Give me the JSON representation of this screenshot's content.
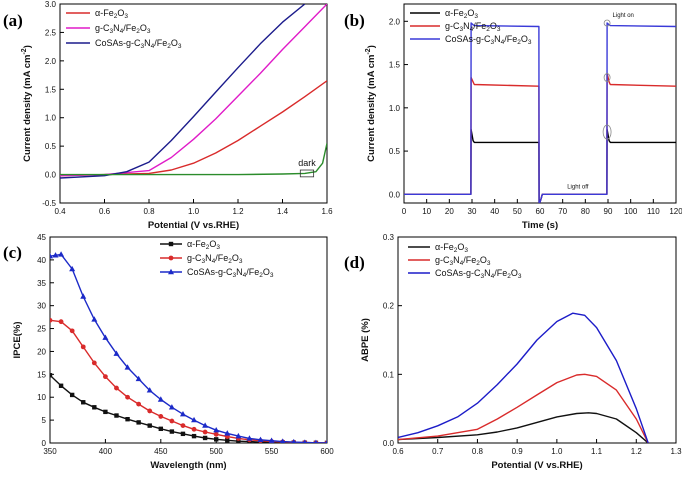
{
  "chart_data": [
    {
      "id": "a",
      "panel_label": "(a)",
      "type": "line",
      "xlabel": "Potential (V vs.RHE)",
      "ylabel": "Current density (mA cm",
      "ylabel_sup": "-2",
      "ylabel_end": ")",
      "xlim": [
        0.4,
        1.6
      ],
      "ylim": [
        -0.5,
        3.0
      ],
      "xticks": [
        0.4,
        0.6,
        0.8,
        1.0,
        1.2,
        1.4,
        1.6
      ],
      "xticklabels": [
        "0.4",
        "0.6",
        "0.8",
        "1.0",
        "1.2",
        "1.4",
        "1.6"
      ],
      "yticks": [
        -0.5,
        0.0,
        0.5,
        1.0,
        1.5,
        2.0,
        2.5,
        3.0
      ],
      "yticklabels": [
        "-0.5",
        "0.0",
        "0.5",
        "1.0",
        "1.5",
        "2.0",
        "2.5",
        "3.0"
      ],
      "legend": [
        {
          "text": "α-Fe",
          "sub": "2",
          "text2": "O",
          "sub2": "3",
          "text3": "",
          "color": "#d92b2b"
        },
        {
          "text": "g-C",
          "sub": "3",
          "text2": "N",
          "sub2": "4",
          "text3": "/Fe",
          "sub3": "2",
          "text4": "O",
          "sub4": "3",
          "color": "#e01cc8"
        },
        {
          "text": "CoSAs-g-C",
          "sub": "3",
          "text2": "N",
          "sub2": "4",
          "text3": "/Fe",
          "sub3": "2",
          "text4": "O",
          "sub4": "3",
          "color": "#1c1c8c"
        }
      ],
      "series": [
        {
          "name": "α-Fe2O3",
          "color": "#d92b2b",
          "x": [
            0.4,
            0.6,
            0.8,
            0.9,
            1.0,
            1.1,
            1.2,
            1.3,
            1.4,
            1.5,
            1.6
          ],
          "values": [
            -0.02,
            0.0,
            0.02,
            0.08,
            0.2,
            0.38,
            0.6,
            0.85,
            1.1,
            1.37,
            1.65
          ]
        },
        {
          "name": "g-C3N4/Fe2O3",
          "color": "#e01cc8",
          "x": [
            0.4,
            0.6,
            0.8,
            0.9,
            1.0,
            1.1,
            1.2,
            1.3,
            1.4,
            1.5,
            1.6
          ],
          "values": [
            -0.02,
            0.0,
            0.07,
            0.3,
            0.62,
            0.98,
            1.38,
            1.78,
            2.2,
            2.6,
            3.0
          ]
        },
        {
          "name": "CoSAs-g-C3N4/Fe2O3",
          "color": "#1c1c8c",
          "x": [
            0.4,
            0.6,
            0.7,
            0.8,
            0.9,
            1.0,
            1.1,
            1.2,
            1.3,
            1.4,
            1.5
          ],
          "values": [
            -0.06,
            -0.02,
            0.05,
            0.22,
            0.6,
            1.02,
            1.45,
            1.88,
            2.3,
            2.68,
            3.0
          ]
        },
        {
          "name": "dark",
          "color": "#2b8c2b",
          "x": [
            0.4,
            0.6,
            0.8,
            1.0,
            1.2,
            1.4,
            1.5,
            1.55,
            1.58,
            1.6
          ],
          "values": [
            0.0,
            0.0,
            0.0,
            0.0,
            0.0,
            0.01,
            0.02,
            0.05,
            0.2,
            0.55
          ]
        }
      ],
      "annotation": "dark"
    },
    {
      "id": "b",
      "panel_label": "(b)",
      "type": "line",
      "xlabel": "Time (s)",
      "ylabel": "Current density (mA cm",
      "ylabel_sup": "-2",
      "ylabel_end": ")",
      "xlim": [
        0,
        120
      ],
      "ylim": [
        -0.1,
        2.2
      ],
      "xticks": [
        0,
        10,
        20,
        30,
        40,
        50,
        60,
        70,
        80,
        90,
        100,
        110,
        120
      ],
      "xticklabels": [
        "0",
        "10",
        "20",
        "30",
        "40",
        "50",
        "60",
        "70",
        "80",
        "90",
        "100",
        "110",
        "120"
      ],
      "yticks": [
        0.0,
        0.5,
        1.0,
        1.5,
        2.0
      ],
      "yticklabels": [
        "0.0",
        "0.5",
        "1.0",
        "1.5",
        "2.0"
      ],
      "legend": [
        {
          "text": "α-Fe",
          "sub": "2",
          "text2": "O",
          "sub2": "3",
          "text3": "",
          "color": "#000000"
        },
        {
          "text": "g-C",
          "sub": "3",
          "text2": "N",
          "sub2": "4",
          "text3": "/Fe",
          "sub3": "2",
          "text4": "O",
          "sub4": "3",
          "color": "#d92b2b"
        },
        {
          "text": "CoSAs-g-C",
          "sub": "3",
          "text2": "N",
          "sub2": "4",
          "text3": "/Fe",
          "sub3": "2",
          "text4": "O",
          "sub4": "3",
          "color": "#3a3ad8"
        }
      ],
      "series": [
        {
          "name": "α-Fe2O3",
          "color": "#000000",
          "x": [
            0,
            29.5,
            29.6,
            30.5,
            31,
            59.5,
            59.6,
            60.5,
            61,
            89.5,
            89.6,
            90.5,
            91,
            120
          ],
          "values": [
            0.0,
            0.0,
            0.75,
            0.62,
            0.6,
            0.6,
            -0.12,
            -0.05,
            0.0,
            0.0,
            0.75,
            0.62,
            0.6,
            0.6
          ]
        },
        {
          "name": "g-C3N4/Fe2O3",
          "color": "#d92b2b",
          "x": [
            0,
            29.5,
            29.6,
            30.5,
            31,
            59.5,
            59.6,
            60.5,
            61,
            89.5,
            89.6,
            90.5,
            91,
            120
          ],
          "values": [
            0.0,
            0.0,
            1.35,
            1.3,
            1.27,
            1.25,
            -0.12,
            -0.05,
            0.0,
            0.0,
            1.4,
            1.3,
            1.27,
            1.25
          ]
        },
        {
          "name": "CoSAs-g-C3N4/Fe2O3",
          "color": "#3a3ad8",
          "x": [
            0,
            29.5,
            29.6,
            30.5,
            31,
            59.5,
            59.6,
            60.5,
            61,
            89.5,
            89.6,
            90.5,
            91,
            120
          ],
          "values": [
            0.0,
            0.0,
            1.98,
            1.96,
            1.95,
            1.94,
            -0.12,
            -0.05,
            0.0,
            0.0,
            1.98,
            1.96,
            1.95,
            1.94
          ]
        }
      ],
      "annotations": [
        "Light on",
        "Light off"
      ]
    },
    {
      "id": "c",
      "panel_label": "(c)",
      "type": "line",
      "xlabel": "Wavelength (nm)",
      "ylabel": "IPCE(%)",
      "xlim": [
        350,
        600
      ],
      "ylim": [
        0,
        45
      ],
      "xticks": [
        350,
        400,
        450,
        500,
        550,
        600
      ],
      "xticklabels": [
        "350",
        "400",
        "450",
        "500",
        "550",
        "600"
      ],
      "yticks": [
        0,
        5,
        10,
        15,
        20,
        25,
        30,
        35,
        40,
        45
      ],
      "yticklabels": [
        "0",
        "5",
        "10",
        "15",
        "20",
        "25",
        "30",
        "35",
        "40",
        "45"
      ],
      "legend": [
        {
          "text": "α-Fe",
          "sub": "2",
          "text2": "O",
          "sub2": "3",
          "text3": "",
          "color": "#111111",
          "marker": "square"
        },
        {
          "text": "g-C",
          "sub": "3",
          "text2": "N",
          "sub2": "4",
          "text3": "/Fe",
          "sub3": "2",
          "text4": "O",
          "sub4": "3",
          "color": "#d92b2b",
          "marker": "circle"
        },
        {
          "text": "CoSAs-g-C",
          "sub": "3",
          "text2": "N",
          "sub2": "4",
          "text3": "/Fe",
          "sub3": "2",
          "text4": "O",
          "sub4": "3",
          "color": "#1c2ac8",
          "marker": "triangle"
        }
      ],
      "series": [
        {
          "name": "α-Fe2O3",
          "color": "#111111",
          "marker": "square",
          "x": [
            350,
            360,
            370,
            380,
            390,
            400,
            410,
            420,
            430,
            440,
            450,
            460,
            470,
            480,
            490,
            500,
            510,
            520,
            530,
            540,
            550,
            560,
            570,
            580,
            590,
            600
          ],
          "values": [
            14.8,
            12.5,
            10.5,
            8.9,
            7.8,
            6.8,
            6.0,
            5.2,
            4.5,
            3.8,
            3.1,
            2.5,
            2.0,
            1.5,
            1.1,
            0.8,
            0.6,
            0.4,
            0.3,
            0.2,
            0.15,
            0.1,
            0.08,
            0.05,
            0.03,
            0.02
          ]
        },
        {
          "name": "g-C3N4/Fe2O3",
          "color": "#d92b2b",
          "marker": "circle",
          "x": [
            350,
            360,
            370,
            380,
            390,
            400,
            410,
            420,
            430,
            440,
            450,
            460,
            470,
            480,
            490,
            500,
            510,
            520,
            530,
            540,
            550,
            560,
            570,
            580,
            590,
            600
          ],
          "values": [
            26.8,
            26.5,
            24.5,
            21.0,
            17.5,
            14.5,
            12.0,
            10.0,
            8.5,
            7.0,
            5.8,
            4.8,
            3.8,
            3.0,
            2.4,
            1.9,
            1.4,
            1.0,
            0.7,
            0.5,
            0.35,
            0.25,
            0.15,
            0.1,
            0.05,
            0.02
          ]
        },
        {
          "name": "CoSAs-g-C3N4/Fe2O3",
          "color": "#1c2ac8",
          "marker": "triangle",
          "x": [
            350,
            355,
            360,
            370,
            380,
            390,
            400,
            410,
            420,
            430,
            440,
            450,
            460,
            470,
            480,
            490,
            500,
            510,
            520,
            530,
            540,
            550,
            560,
            570,
            580,
            590,
            600
          ],
          "values": [
            40.8,
            41.0,
            41.2,
            38.0,
            32.0,
            27.0,
            23.0,
            19.5,
            16.5,
            14.0,
            11.5,
            9.5,
            7.8,
            6.3,
            5.0,
            3.8,
            2.8,
            2.1,
            1.5,
            1.0,
            0.7,
            0.5,
            0.3,
            0.2,
            0.1,
            0.05,
            0.02
          ]
        }
      ]
    },
    {
      "id": "d",
      "panel_label": "(d)",
      "type": "line",
      "xlabel": "Potential (V vs.RHE)",
      "ylabel": "ABPE (%)",
      "xlim": [
        0.6,
        1.3
      ],
      "ylim": [
        0,
        0.3
      ],
      "xticks": [
        0.6,
        0.7,
        0.8,
        0.9,
        1.0,
        1.1,
        1.2,
        1.3
      ],
      "xticklabels": [
        "0.6",
        "0.7",
        "0.8",
        "0.9",
        "1.0",
        "1.1",
        "1.2",
        "1.3"
      ],
      "yticks": [
        0.0,
        0.1,
        0.2,
        0.3
      ],
      "yticklabels": [
        "0.0",
        "0.1",
        "0.2",
        "0.3"
      ],
      "legend": [
        {
          "text": "α-Fe",
          "sub": "2",
          "text2": "O",
          "sub2": "3",
          "text3": "",
          "color": "#111111"
        },
        {
          "text": "g-C",
          "sub": "3",
          "text2": "N",
          "sub2": "4",
          "text3": "/Fe",
          "sub3": "2",
          "text4": "O",
          "sub4": "3",
          "color": "#d92b2b"
        },
        {
          "text": "CoSAs-g-C",
          "sub": "3",
          "text2": "N",
          "sub2": "4",
          "text3": "/Fe",
          "sub3": "2",
          "text4": "O",
          "sub4": "3",
          "color": "#1c1cc8"
        }
      ],
      "series": [
        {
          "name": "α-Fe2O3",
          "color": "#111111",
          "x": [
            0.6,
            0.7,
            0.8,
            0.85,
            0.9,
            0.95,
            1.0,
            1.05,
            1.08,
            1.1,
            1.15,
            1.2,
            1.23
          ],
          "values": [
            0.005,
            0.008,
            0.012,
            0.016,
            0.022,
            0.03,
            0.038,
            0.043,
            0.044,
            0.043,
            0.035,
            0.015,
            0.0
          ]
        },
        {
          "name": "g-C3N4/Fe2O3",
          "color": "#d92b2b",
          "x": [
            0.6,
            0.7,
            0.8,
            0.85,
            0.9,
            0.95,
            1.0,
            1.05,
            1.07,
            1.1,
            1.15,
            1.2,
            1.23
          ],
          "values": [
            0.005,
            0.01,
            0.02,
            0.035,
            0.052,
            0.07,
            0.088,
            0.099,
            0.1,
            0.097,
            0.077,
            0.035,
            0.0
          ]
        },
        {
          "name": "CoSAs-g-C3N4/Fe2O3",
          "color": "#1c1cc8",
          "x": [
            0.6,
            0.65,
            0.7,
            0.75,
            0.8,
            0.85,
            0.9,
            0.95,
            1.0,
            1.04,
            1.07,
            1.1,
            1.15,
            1.2,
            1.23
          ],
          "values": [
            0.008,
            0.015,
            0.025,
            0.038,
            0.058,
            0.085,
            0.115,
            0.15,
            0.177,
            0.189,
            0.186,
            0.168,
            0.12,
            0.05,
            0.0
          ]
        }
      ]
    }
  ]
}
